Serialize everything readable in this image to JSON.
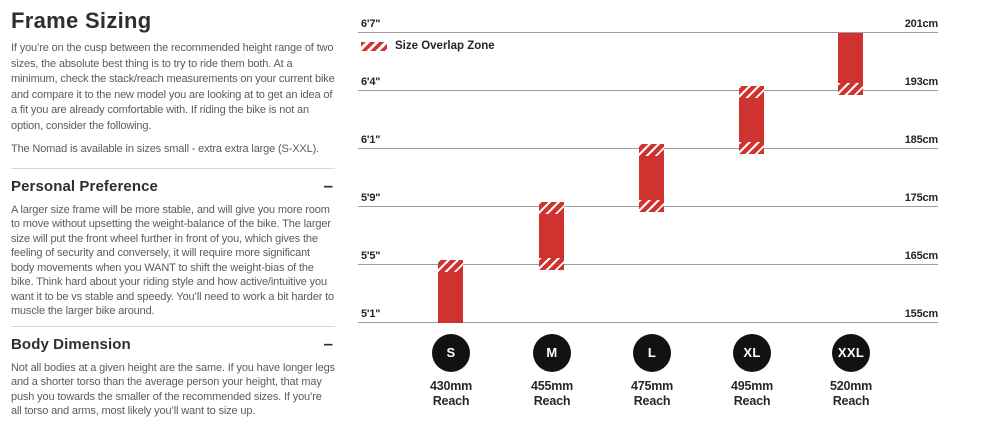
{
  "page": {
    "title": "Frame Sizing",
    "intro": "If you’re on the cusp between the recommended height range of two sizes, the absolute best thing is to try to ride them both. At a minimum, check the stack/reach measurements on your current bike and compare it to the new model you are looking at to get an idea of a fit you are already comfortable with. If riding the bike is not an option, consider the following.",
    "availability": "The Nomad is available in sizes small - extra extra large (S-XXL).",
    "sections": [
      {
        "heading": "Personal Preference",
        "collapse_icon": "–",
        "body": "A larger size frame will be more stable, and will give you more room to move without upsetting the weight-balance of the bike. The larger size will put the front wheel further in front of you, which gives the feeling of security and conversely, it will require more significant body movements when you WANT to shift the weight-bias of the bike. Think hard about your riding style and how active/intuitive you want it to be vs stable and speedy. You’ll need to work a bit harder to muscle the larger bike around."
      },
      {
        "heading": "Body Dimension",
        "collapse_icon": "–",
        "body": "Not all bodies at a given height are the same. If you have longer legs and a shorter torso than the average person your height, that may push you towards the smaller of the recommended sizes. If you’re all torso and arms, most likely you’ll want to size up."
      }
    ]
  },
  "chart": {
    "legend_label": "Size Overlap Zone",
    "reach_word": "Reach",
    "rows": [
      {
        "imperial": "6'7\"",
        "metric": "201cm"
      },
      {
        "imperial": "6'4\"",
        "metric": "193cm"
      },
      {
        "imperial": "6'1\"",
        "metric": "185cm"
      },
      {
        "imperial": "5'9\"",
        "metric": "175cm"
      },
      {
        "imperial": "5'5\"",
        "metric": "165cm"
      },
      {
        "imperial": "5'1\"",
        "metric": "155cm"
      }
    ],
    "sizes": [
      {
        "label": "S",
        "reach": "430mm"
      },
      {
        "label": "M",
        "reach": "455mm"
      },
      {
        "label": "L",
        "reach": "475mm"
      },
      {
        "label": "XL",
        "reach": "495mm"
      },
      {
        "label": "XXL",
        "reach": "520mm"
      }
    ]
  },
  "chart_data": {
    "type": "bar",
    "subtype": "vertical_range_bars_rider_height_by_frame_size",
    "title": "",
    "legend": [
      "Size Overlap Zone"
    ],
    "legend_position": "top-left",
    "grid": true,
    "y_axis": {
      "left_tick_labels": [
        "6'7\"",
        "6'4\"",
        "6'1\"",
        "5'9\"",
        "5'5\"",
        "5'1\""
      ],
      "right_tick_labels": [
        "201cm",
        "193cm",
        "185cm",
        "175cm",
        "165cm",
        "155cm"
      ],
      "tick_values_cm": [
        201,
        193,
        185,
        175,
        165,
        155
      ],
      "spacing": "categorical-even"
    },
    "categories": [
      "S",
      "M",
      "L",
      "XL",
      "XXL"
    ],
    "series": [
      {
        "name": "S",
        "reach": "430mm",
        "height_range_cm": [
          155,
          165
        ],
        "height_range_imperial": [
          "5'1\"",
          "5'5\""
        ],
        "overlap_zone_at": [
          "top"
        ]
      },
      {
        "name": "M",
        "reach": "455mm",
        "height_range_cm": [
          165,
          175
        ],
        "height_range_imperial": [
          "5'5\"",
          "5'9\""
        ],
        "overlap_zone_at": [
          "top",
          "bottom"
        ]
      },
      {
        "name": "L",
        "reach": "475mm",
        "height_range_cm": [
          175,
          185
        ],
        "height_range_imperial": [
          "5'9\"",
          "6'1\""
        ],
        "overlap_zone_at": [
          "top",
          "bottom"
        ]
      },
      {
        "name": "XL",
        "reach": "495mm",
        "height_range_cm": [
          185,
          193
        ],
        "height_range_imperial": [
          "6'1\"",
          "6'4\""
        ],
        "overlap_zone_at": [
          "top",
          "bottom"
        ]
      },
      {
        "name": "XXL",
        "reach": "520mm",
        "height_range_cm": [
          193,
          201
        ],
        "height_range_imperial": [
          "6'4\"",
          "6'7\""
        ],
        "overlap_zone_at": [
          "bottom"
        ]
      }
    ],
    "colors": {
      "bar": "#d0322f",
      "overlap_pattern": "white diagonal hatch over red",
      "gridline": "#9d9d9d",
      "size_badge": "#121212",
      "text_dark": "#2c2e30",
      "text_body": "#5a5c5e"
    }
  }
}
